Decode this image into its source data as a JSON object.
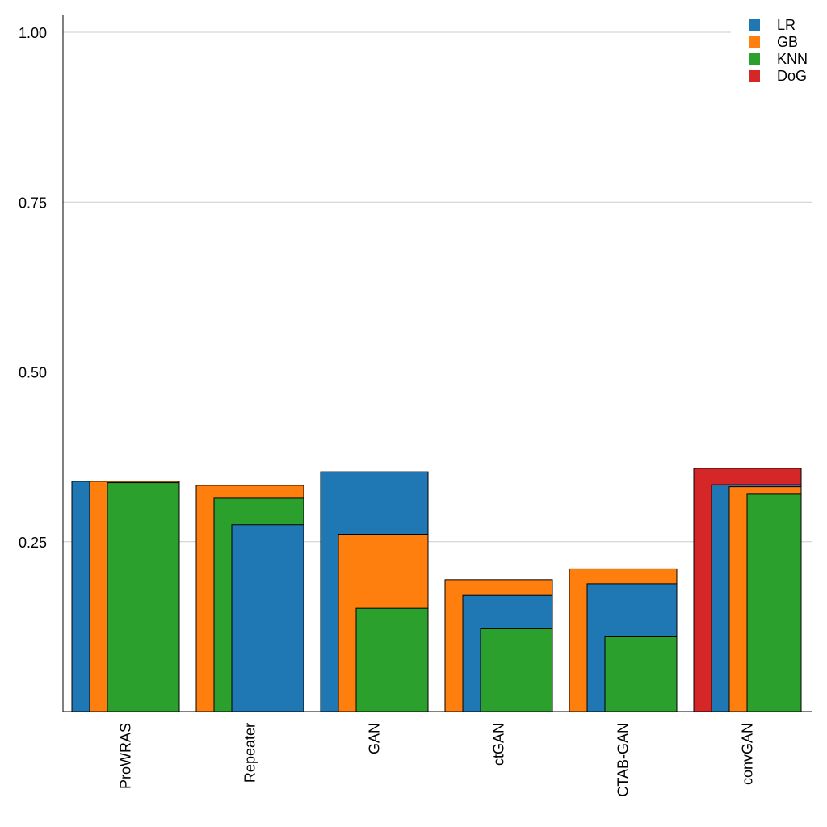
{
  "chart_data": {
    "type": "bar",
    "title": "",
    "xlabel": "",
    "ylabel": "",
    "ylim": [
      0,
      1.0
    ],
    "yticks": [
      0.25,
      0.5,
      0.75,
      1.0
    ],
    "ytick_labels": [
      "0.25",
      "0.50",
      "0.75",
      "1.00"
    ],
    "grid": true,
    "legend_position": "top-right",
    "categories": [
      "ProWRAS",
      "Repeater",
      "GAN",
      "ctGAN",
      "CTAB-GAN",
      "convGAN"
    ],
    "series": [
      {
        "name": "LR",
        "color": "#1f77b4",
        "values": [
          0.339,
          0.275,
          0.353,
          0.171,
          0.188,
          0.334
        ]
      },
      {
        "name": "GB",
        "color": "#ff7f0e",
        "values": [
          0.339,
          0.333,
          0.261,
          0.194,
          0.21,
          0.331
        ]
      },
      {
        "name": "KNN",
        "color": "#2ca02c",
        "values": [
          0.337,
          0.314,
          0.152,
          0.122,
          0.11,
          0.32
        ]
      },
      {
        "name": "DoG",
        "color": "#d62728",
        "values": [
          null,
          null,
          null,
          null,
          null,
          0.358
        ]
      }
    ]
  }
}
